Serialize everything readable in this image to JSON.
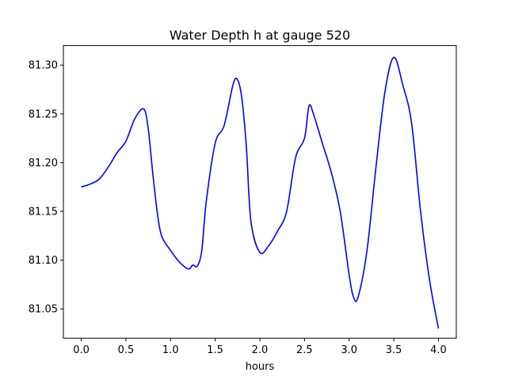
{
  "chart_data": {
    "type": "line",
    "title": "Water Depth h at gauge 520",
    "xlabel": "hours",
    "ylabel": "",
    "xlim": [
      -0.2,
      4.2
    ],
    "ylim": [
      81.02,
      81.32
    ],
    "xticks": [
      0.0,
      0.5,
      1.0,
      1.5,
      2.0,
      2.5,
      3.0,
      3.5,
      4.0
    ],
    "xtick_labels": [
      "0.0",
      "0.5",
      "1.0",
      "1.5",
      "2.0",
      "2.5",
      "3.0",
      "3.5",
      "4.0"
    ],
    "yticks": [
      81.05,
      81.1,
      81.15,
      81.2,
      81.25,
      81.3
    ],
    "ytick_labels": [
      "81.05",
      "81.10",
      "81.15",
      "81.20",
      "81.25",
      "81.30"
    ],
    "grid": false,
    "series": [
      {
        "name": "",
        "color": "#0000ff",
        "x": [
          0.0,
          0.1,
          0.2,
          0.3,
          0.4,
          0.5,
          0.6,
          0.7,
          0.75,
          0.8,
          0.85,
          0.9,
          1.0,
          1.1,
          1.2,
          1.25,
          1.3,
          1.35,
          1.4,
          1.5,
          1.6,
          1.7,
          1.75,
          1.8,
          1.85,
          1.9,
          2.0,
          2.1,
          2.2,
          2.3,
          2.4,
          2.5,
          2.55,
          2.6,
          2.7,
          2.8,
          2.9,
          3.0,
          3.05,
          3.1,
          3.2,
          3.3,
          3.4,
          3.5,
          3.6,
          3.7,
          3.8,
          3.9,
          4.0
        ],
        "y": [
          81.175,
          81.178,
          81.183,
          81.195,
          81.21,
          81.222,
          81.245,
          81.255,
          81.235,
          81.19,
          81.15,
          81.125,
          81.11,
          81.098,
          81.091,
          81.095,
          81.094,
          81.11,
          81.16,
          81.22,
          81.238,
          81.28,
          81.285,
          81.265,
          81.215,
          81.14,
          81.108,
          81.115,
          81.13,
          81.15,
          81.205,
          81.225,
          81.258,
          81.25,
          81.22,
          81.19,
          81.15,
          81.085,
          81.062,
          81.062,
          81.11,
          81.195,
          81.272,
          81.308,
          81.28,
          81.24,
          81.15,
          81.08,
          81.03
        ]
      }
    ]
  }
}
